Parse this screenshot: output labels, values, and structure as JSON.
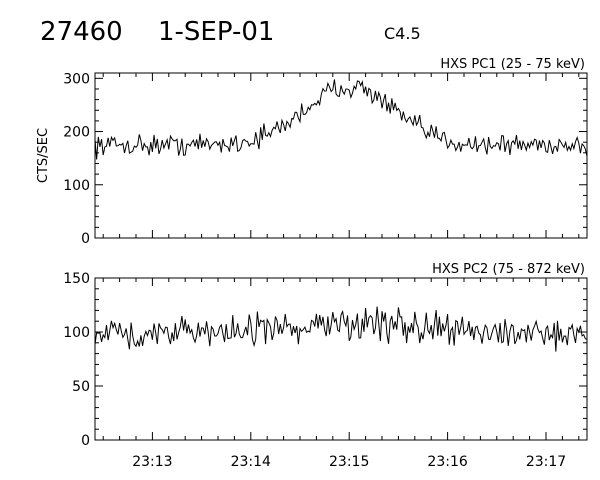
{
  "header": {
    "event_id": "27460",
    "date": "1-SEP-01",
    "goes_class": "C4.5"
  },
  "chart_data": [
    {
      "type": "line",
      "title": "HXS PC1 (25 - 75 keV)",
      "ylabel": "CTS/SEC",
      "xlabel": "",
      "xlim": [
        "23:12:25",
        "23:17:25"
      ],
      "ylim": [
        0,
        310
      ],
      "yticks": [
        0,
        100,
        200,
        300
      ],
      "xticks": [
        "23:13",
        "23:14",
        "23:15",
        "23:16",
        "23:17"
      ],
      "baseline": 175,
      "noise": 14,
      "samples": 300,
      "peak": {
        "time": "23:15:00",
        "value": 285
      },
      "start_value": 178,
      "end_value": 168
    },
    {
      "type": "line",
      "title": "HXS PC2 (75 - 872 keV)",
      "ylabel": "",
      "xlabel": "",
      "xlim": [
        "23:12:25",
        "23:17:25"
      ],
      "ylim": [
        0,
        150
      ],
      "yticks": [
        0,
        50,
        100,
        150
      ],
      "xticks": [
        "23:13",
        "23:14",
        "23:15",
        "23:16",
        "23:17"
      ],
      "baseline": 100,
      "noise": 10,
      "samples": 300,
      "peak": {
        "time": "23:15:10",
        "value": 108
      },
      "start_value": 100,
      "end_value": 100
    }
  ]
}
